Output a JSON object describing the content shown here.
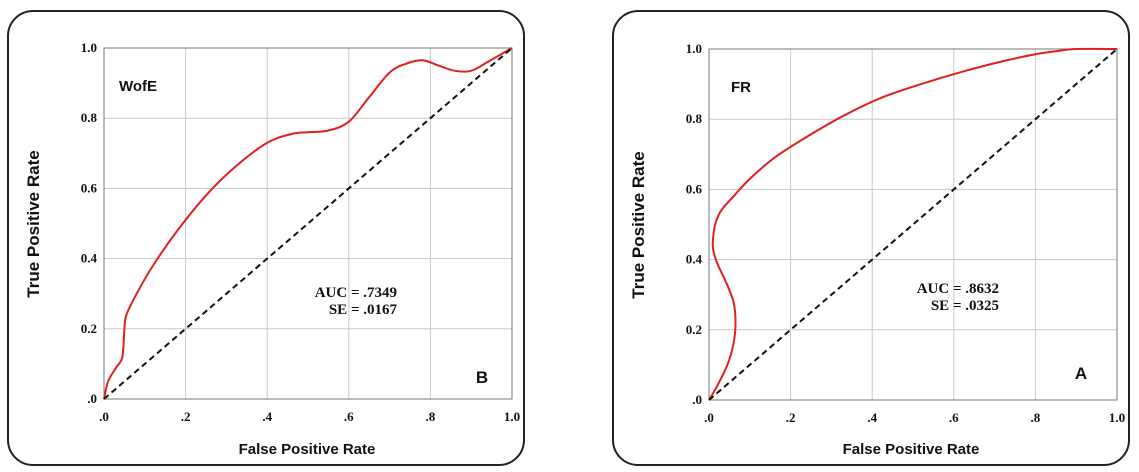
{
  "chart_data": [
    {
      "type": "line",
      "panel": "B",
      "model": "WofE",
      "xlabel": "False Positive Rate",
      "ylabel": "True Positive Rate",
      "xlim": [
        0,
        1
      ],
      "ylim": [
        0,
        1
      ],
      "xticks": [
        ".0",
        ".2",
        ".4",
        ".6",
        ".8",
        "1.0"
      ],
      "yticks": [
        ".0",
        "0.2",
        "0.4",
        "0.6",
        "0.8",
        "1.0"
      ],
      "grid": true,
      "auc_line": "AUC  =  .7349",
      "se_line": "SE  =  .0167",
      "series": [
        {
          "color": "#e02020",
          "x": [
            0,
            0.01,
            0.03,
            0.045,
            0.05,
            0.055,
            0.08,
            0.12,
            0.18,
            0.25,
            0.32,
            0.4,
            0.46,
            0.5,
            0.55,
            0.6,
            0.65,
            0.7,
            0.74,
            0.78,
            0.82,
            0.86,
            0.9,
            0.94,
            0.97,
            1.0
          ],
          "y": [
            0,
            0.05,
            0.09,
            0.12,
            0.2,
            0.24,
            0.3,
            0.38,
            0.48,
            0.58,
            0.66,
            0.73,
            0.755,
            0.76,
            0.765,
            0.79,
            0.86,
            0.93,
            0.955,
            0.965,
            0.95,
            0.935,
            0.935,
            0.96,
            0.98,
            1.0
          ]
        },
        {
          "color": "#111111",
          "dashed": true,
          "x": [
            0,
            1
          ],
          "y": [
            0,
            1
          ]
        }
      ]
    },
    {
      "type": "line",
      "panel": "A",
      "model": "FR",
      "xlabel": "False Positive Rate",
      "ylabel": "True Positive Rate",
      "xlim": [
        0,
        1
      ],
      "ylim": [
        0,
        1
      ],
      "xticks": [
        ".0",
        ".2",
        ".4",
        ".6",
        ".8",
        "1.0"
      ],
      "yticks": [
        ".0",
        "0.2",
        "0.4",
        "0.6",
        "0.8",
        "1.0"
      ],
      "grid": true,
      "auc_line": "AUC  =  .8632",
      "se_line": "SE  =  .0325",
      "series": [
        {
          "color": "#e02020",
          "x": [
            0,
            0.02,
            0.045,
            0.06,
            0.065,
            0.06,
            0.04,
            0.02,
            0.01,
            0.01,
            0.015,
            0.03,
            0.06,
            0.1,
            0.16,
            0.24,
            0.33,
            0.42,
            0.52,
            0.62,
            0.72,
            0.8,
            0.86,
            0.9,
            1.0
          ],
          "y": [
            0,
            0.04,
            0.1,
            0.16,
            0.22,
            0.28,
            0.34,
            0.39,
            0.43,
            0.46,
            0.5,
            0.54,
            0.58,
            0.63,
            0.69,
            0.75,
            0.81,
            0.86,
            0.9,
            0.935,
            0.965,
            0.985,
            0.995,
            1.0,
            1.0
          ]
        },
        {
          "color": "#111111",
          "dashed": true,
          "x": [
            0,
            1
          ],
          "y": [
            0,
            1
          ]
        }
      ]
    }
  ]
}
